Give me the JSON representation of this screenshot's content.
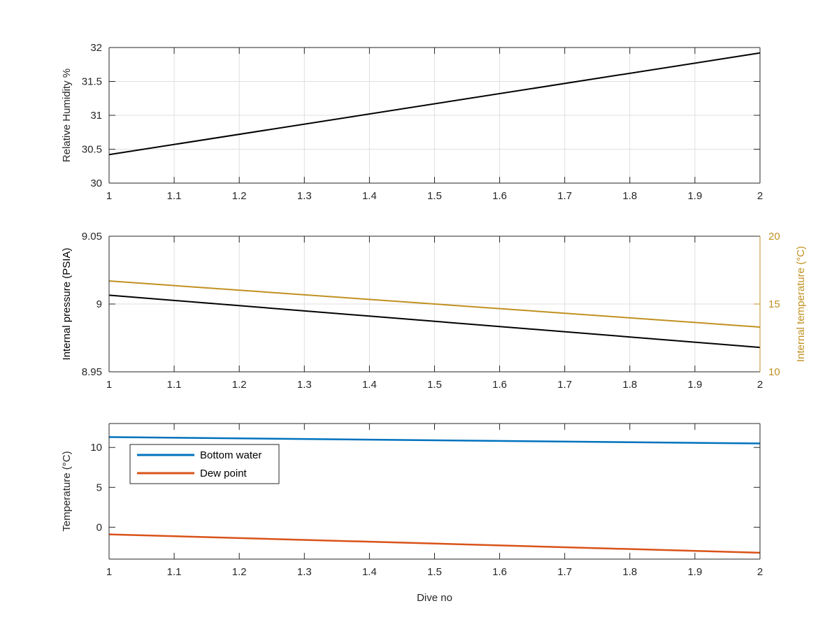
{
  "chart_data": [
    {
      "type": "line",
      "xlim": [
        1,
        2
      ],
      "ylim": [
        30,
        32
      ],
      "xticks": [
        "1",
        "1.1",
        "1.2",
        "1.3",
        "1.4",
        "1.5",
        "1.6",
        "1.7",
        "1.8",
        "1.9",
        "2"
      ],
      "yticks": [
        "30",
        "30.5",
        "31",
        "31.5",
        "32"
      ],
      "ylabel": "Relative Humidity %",
      "grid": true,
      "series": [
        {
          "color": "#000000",
          "x": [
            1,
            2
          ],
          "y": [
            30.42,
            31.92
          ]
        }
      ]
    },
    {
      "type": "line",
      "xlim": [
        1,
        2
      ],
      "ylim": [
        8.95,
        9.05
      ],
      "xticks": [
        "1",
        "1.1",
        "1.2",
        "1.3",
        "1.4",
        "1.5",
        "1.6",
        "1.7",
        "1.8",
        "1.9",
        "2"
      ],
      "yticks": [
        "8.95",
        "9",
        "9.05"
      ],
      "ylabel": "Internal pressure (PSIA)",
      "y2lim": [
        10,
        20
      ],
      "y2ticks": [
        "10",
        "15",
        "20"
      ],
      "y2label": "Internal temperature (°C)",
      "grid": true,
      "series": [
        {
          "color": "#000000",
          "axis": "left",
          "x": [
            1,
            2
          ],
          "y": [
            9.0065,
            8.968
          ]
        },
        {
          "color": "#c09020",
          "axis": "right",
          "x": [
            1,
            2
          ],
          "y": [
            16.7,
            13.3
          ]
        }
      ]
    },
    {
      "type": "line",
      "xlim": [
        1,
        2
      ],
      "ylim": [
        -4,
        13
      ],
      "xticks": [
        "1",
        "1.1",
        "1.2",
        "1.3",
        "1.4",
        "1.5",
        "1.6",
        "1.7",
        "1.8",
        "1.9",
        "2"
      ],
      "yticks": [
        "0",
        "5",
        "10"
      ],
      "ylabel": "Temperature (°C)",
      "xlabel": "Dive no",
      "grid": false,
      "legend_position": "top-left",
      "series": [
        {
          "name": "Bottom water",
          "color": "#0072bd",
          "x": [
            1,
            2
          ],
          "y": [
            11.3,
            10.5
          ]
        },
        {
          "name": "Dew point",
          "color": "#d95319",
          "x": [
            1,
            2
          ],
          "y": [
            -0.9,
            -3.2
          ]
        }
      ]
    }
  ]
}
